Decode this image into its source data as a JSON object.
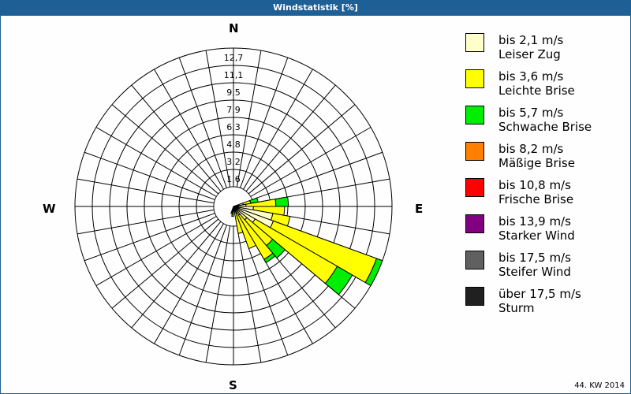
{
  "title": "Windstatistik [%]",
  "footer": "44. KW 2014",
  "compass": {
    "n": "N",
    "e": "E",
    "s": "S",
    "w": "W"
  },
  "legend": [
    {
      "range": "bis 2,1 m/s",
      "name": "Leiser Zug",
      "color": "#ffffcc"
    },
    {
      "range": "bis 3,6 m/s",
      "name": "Leichte Brise",
      "color": "#ffff00"
    },
    {
      "range": "bis 5,7 m/s",
      "name": "Schwache Brise",
      "color": "#00ee00"
    },
    {
      "range": "bis 8,2 m/s",
      "name": "Mäßige Brise",
      "color": "#ff8000"
    },
    {
      "range": "bis 10,8 m/s",
      "name": "Frische Brise",
      "color": "#ff0000"
    },
    {
      "range": "bis 13,9 m/s",
      "name": "Starker Wind",
      "color": "#800080"
    },
    {
      "range": "bis 17,5 m/s",
      "name": "Steifer Wind",
      "color": "#606060"
    },
    {
      "range": "über 17,5 m/s",
      "name": "Sturm",
      "color": "#202020"
    }
  ],
  "chart_data": {
    "type": "wind-rose",
    "title": "Windstatistik [%]",
    "radial_ticks": [
      "1,6",
      "3,2",
      "4,8",
      "6,3",
      "7,9",
      "9,5",
      "11,1",
      "12,7"
    ],
    "radial_max": 12.7,
    "sector_width_deg": 10,
    "series_names": [
      "Leiser Zug",
      "Leichte Brise",
      "Schwache Brise",
      "Mäßige Brise",
      "Frische Brise",
      "Starker Wind",
      "Steifer Wind",
      "Sturm"
    ],
    "sectors": [
      {
        "dir": 75,
        "values": [
          0.8,
          0.6,
          0.6,
          0,
          0,
          0,
          0,
          0
        ]
      },
      {
        "dir": 85,
        "values": [
          1.0,
          2.4,
          1.0,
          0,
          0,
          0,
          0,
          0
        ]
      },
      {
        "dir": 95,
        "values": [
          1.6,
          2.5,
          0,
          0,
          0,
          0,
          0,
          0
        ]
      },
      {
        "dir": 105,
        "values": [
          3.2,
          1.4,
          0,
          0,
          0,
          0,
          0,
          0
        ]
      },
      {
        "dir": 115,
        "values": [
          3.4,
          8.8,
          0.5,
          0,
          0,
          0,
          0,
          0
        ]
      },
      {
        "dir": 125,
        "values": [
          2.0,
          7.6,
          1.4,
          0,
          0,
          0,
          0,
          0
        ]
      },
      {
        "dir": 135,
        "values": [
          1.4,
          2.7,
          1.3,
          0,
          0,
          0,
          0,
          0
        ]
      },
      {
        "dir": 145,
        "values": [
          0.8,
          4.1,
          0.3,
          0,
          0,
          0,
          0,
          0
        ]
      },
      {
        "dir": 155,
        "values": [
          0.6,
          3.0,
          0,
          0,
          0,
          0,
          0,
          0
        ]
      },
      {
        "dir": 165,
        "values": [
          0.4,
          1.8,
          0,
          0,
          0,
          0,
          0,
          0
        ]
      },
      {
        "dir": 185,
        "values": [
          0.2,
          0.3,
          0.3,
          0,
          0,
          0,
          0,
          0
        ]
      },
      {
        "dir": 195,
        "values": [
          0.2,
          0.2,
          0.2,
          0,
          0,
          0,
          0,
          0
        ]
      }
    ],
    "legend_position": "right"
  }
}
